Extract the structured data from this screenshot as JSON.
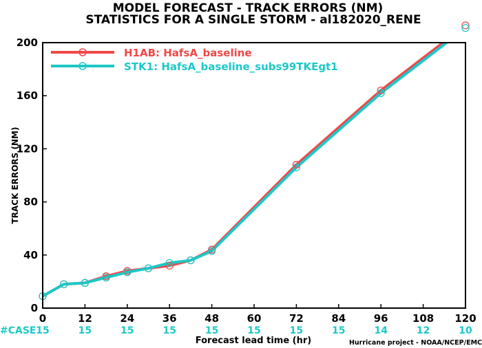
{
  "title_line1": "MODEL FORECAST - TRACK ERRORS (NM)",
  "title_line2": "STATISTICS FOR A SINGLE STORM - al182020_RENE",
  "credit": "Hurricane project - NOAA/NCEP/EMC",
  "case_label": "#CASE",
  "case_counts": [
    "15",
    "15",
    "15",
    "15",
    "15",
    "15",
    "15",
    "15",
    "14",
    "12",
    "10"
  ],
  "colors": {
    "h1ab": "#f04848",
    "stk1": "#1cc8c8"
  },
  "chart_data": {
    "type": "line",
    "title": "MODEL FORECAST - TRACK ERRORS (NM)",
    "subtitle": "STATISTICS FOR A SINGLE STORM - al182020_RENE",
    "xlabel": "Forecast lead time (hr)",
    "ylabel": "TRACK ERRORS (NM)",
    "xlim": [
      0,
      120
    ],
    "ylim": [
      0,
      200
    ],
    "xticks": [
      0,
      12,
      24,
      36,
      48,
      60,
      72,
      84,
      96,
      108,
      120
    ],
    "yticks": [
      0,
      40,
      80,
      120,
      160,
      200
    ],
    "legend_position": "top-left",
    "grid": false,
    "series": [
      {
        "name": "H1AB: HafsA_baseline",
        "x": [
          0,
          6,
          12,
          18,
          24,
          30,
          36,
          42,
          48,
          72,
          96,
          120
        ],
        "y": [
          9,
          18,
          19,
          24,
          28,
          30,
          32,
          36,
          44,
          108,
          164,
          213
        ]
      },
      {
        "name": "STK1: HafsA_baseline_subs99TKEgt1",
        "x": [
          0,
          6,
          12,
          18,
          24,
          30,
          36,
          42,
          48,
          72,
          96,
          120
        ],
        "y": [
          9,
          18,
          19,
          23,
          27,
          30,
          34,
          36,
          43,
          106,
          162,
          211
        ]
      }
    ]
  }
}
